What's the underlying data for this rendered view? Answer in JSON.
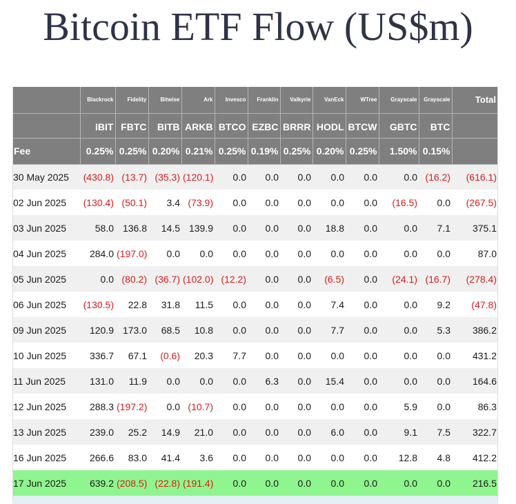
{
  "title": "Bitcoin ETF Flow (US$m)",
  "fee_label": "Fee",
  "total_label": "Total",
  "columns": [
    {
      "issuer": "Blackrock",
      "ticker": "IBIT",
      "fee": "0.25%"
    },
    {
      "issuer": "Fidelity",
      "ticker": "FBTC",
      "fee": "0.25%"
    },
    {
      "issuer": "Bitwise",
      "ticker": "BITB",
      "fee": "0.20%"
    },
    {
      "issuer": "Ark",
      "ticker": "ARKB",
      "fee": "0.21%"
    },
    {
      "issuer": "Invesco",
      "ticker": "BTCO",
      "fee": "0.25%"
    },
    {
      "issuer": "Franklin",
      "ticker": "EZBC",
      "fee": "0.19%"
    },
    {
      "issuer": "Valkyrie",
      "ticker": "BRRR",
      "fee": "0.25%"
    },
    {
      "issuer": "VanEck",
      "ticker": "HODL",
      "fee": "0.20%"
    },
    {
      "issuer": "WTree",
      "ticker": "BTCW",
      "fee": "0.25%"
    },
    {
      "issuer": "Grayscale",
      "ticker": "GBTC",
      "fee": "1.50%"
    },
    {
      "issuer": "Grayscale",
      "ticker": "BTC",
      "fee": "0.15%"
    }
  ],
  "colors": {
    "header_bg": "#7f7f7f",
    "negative": "#dd1a1a",
    "highlight_row": "#8ff58f",
    "title": "#2f3346"
  },
  "rows": [
    {
      "date": "30 May 2025",
      "values": [
        "(430.8)",
        "(13.7)",
        "(35.3)",
        "(120.1)",
        "0.0",
        "0.0",
        "0.0",
        "0.0",
        "0.0",
        "0.0",
        "(16.2)"
      ],
      "total": "(616.1)"
    },
    {
      "date": "02 Jun 2025",
      "values": [
        "(130.4)",
        "(50.1)",
        "3.4",
        "(73.9)",
        "0.0",
        "0.0",
        "0.0",
        "0.0",
        "0.0",
        "(16.5)",
        "0.0"
      ],
      "total": "(267.5)"
    },
    {
      "date": "03 Jun 2025",
      "values": [
        "58.0",
        "136.8",
        "14.5",
        "139.9",
        "0.0",
        "0.0",
        "0.0",
        "18.8",
        "0.0",
        "0.0",
        "7.1"
      ],
      "total": "375.1"
    },
    {
      "date": "04 Jun 2025",
      "values": [
        "284.0",
        "(197.0)",
        "0.0",
        "0.0",
        "0.0",
        "0.0",
        "0.0",
        "0.0",
        "0.0",
        "0.0",
        "0.0"
      ],
      "total": "87.0"
    },
    {
      "date": "05 Jun 2025",
      "values": [
        "0.0",
        "(80.2)",
        "(36.7)",
        "(102.0)",
        "(12.2)",
        "0.0",
        "0.0",
        "(6.5)",
        "0.0",
        "(24.1)",
        "(16.7)"
      ],
      "total": "(278.4)"
    },
    {
      "date": "06 Jun 2025",
      "values": [
        "(130.5)",
        "22.8",
        "31.8",
        "11.5",
        "0.0",
        "0.0",
        "0.0",
        "7.4",
        "0.0",
        "0.0",
        "9.2"
      ],
      "total": "(47.8)"
    },
    {
      "date": "09 Jun 2025",
      "values": [
        "120.9",
        "173.0",
        "68.5",
        "10.8",
        "0.0",
        "0.0",
        "0.0",
        "7.7",
        "0.0",
        "0.0",
        "5.3"
      ],
      "total": "386.2"
    },
    {
      "date": "10 Jun 2025",
      "values": [
        "336.7",
        "67.1",
        "(0.6)",
        "20.3",
        "7.7",
        "0.0",
        "0.0",
        "0.0",
        "0.0",
        "0.0",
        "0.0"
      ],
      "total": "431.2"
    },
    {
      "date": "11 Jun 2025",
      "values": [
        "131.0",
        "11.9",
        "0.0",
        "0.0",
        "0.0",
        "6.3",
        "0.0",
        "15.4",
        "0.0",
        "0.0",
        "0.0"
      ],
      "total": "164.6"
    },
    {
      "date": "12 Jun 2025",
      "values": [
        "288.3",
        "(197.2)",
        "0.0",
        "(10.7)",
        "0.0",
        "0.0",
        "0.0",
        "0.0",
        "0.0",
        "5.9",
        "0.0"
      ],
      "total": "86.3"
    },
    {
      "date": "13 Jun 2025",
      "values": [
        "239.0",
        "25.2",
        "14.9",
        "21.0",
        "0.0",
        "0.0",
        "0.0",
        "6.0",
        "0.0",
        "9.1",
        "7.5"
      ],
      "total": "322.7"
    },
    {
      "date": "16 Jun 2025",
      "values": [
        "266.6",
        "83.0",
        "41.4",
        "3.6",
        "0.0",
        "0.0",
        "0.0",
        "0.0",
        "0.0",
        "12.8",
        "4.8"
      ],
      "total": "412.2"
    },
    {
      "date": "17 Jun 2025",
      "values": [
        "639.2",
        "(208.5)",
        "(22.8)",
        "(191.4)",
        "0.0",
        "0.0",
        "0.0",
        "0.0",
        "0.0",
        "0.0",
        "0.0"
      ],
      "total": "216.5",
      "highlight": true
    }
  ]
}
